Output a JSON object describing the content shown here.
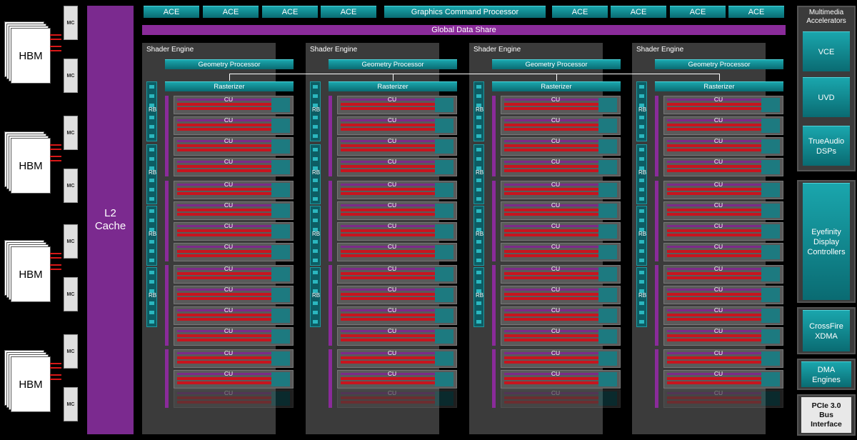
{
  "memory": {
    "hbm_label": "HBM",
    "mc_label": "MC"
  },
  "l2": {
    "line1": "L2",
    "line2": "Cache"
  },
  "front_end": {
    "ace_label": "ACE",
    "gcp_label": "Graphics Command Processor",
    "gds_label": "Global Data Share"
  },
  "shader_engine": {
    "title": "Shader Engine",
    "geometry_label": "Geometry Processor",
    "rasterizer_label": "Rasterizer",
    "rb_label": "RB",
    "cu_label": "CU"
  },
  "right_panel": {
    "mm_title_line1": "Multimedia",
    "mm_title_line2": "Accelerators",
    "vce": "VCE",
    "uvd": "UVD",
    "trueaudio_line1": "TrueAudio",
    "trueaudio_line2": "DSPs",
    "eyefinity_line1": "Eyefinity",
    "eyefinity_line2": "Display",
    "eyefinity_line3": "Controllers",
    "crossfire_line1": "CrossFire",
    "crossfire_line2": "XDMA",
    "dma_line1": "DMA",
    "dma_line2": "Engines",
    "pcie_line1": "PCIe 3.0",
    "pcie_line2": "Bus",
    "pcie_line3": "Interface"
  },
  "colors": {
    "teal": "#1aa6ad",
    "purple": "#7b2a8f",
    "red": "#c8141e",
    "panel": "#3b3b3b"
  }
}
